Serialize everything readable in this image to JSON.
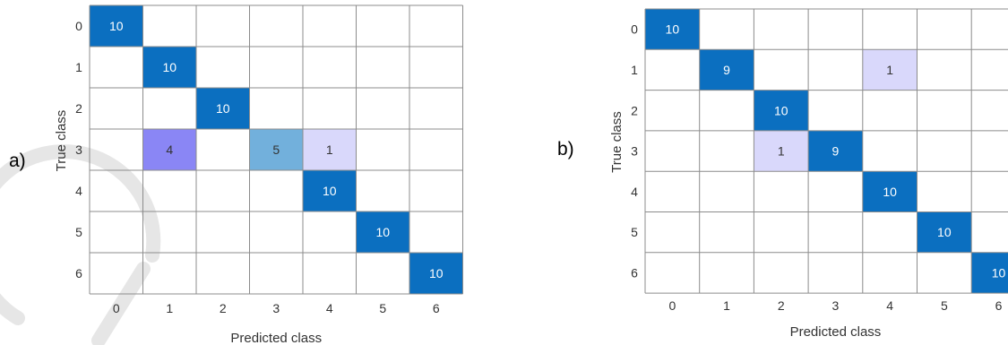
{
  "panels": {
    "a": {
      "label": "a)"
    },
    "b": {
      "label": "b)"
    }
  },
  "colors": {
    "strong": "#0b6fc0",
    "medium": "#72b0dc",
    "purple": "#8a86f5",
    "light": "#d9d8fb",
    "grid": "#8c8c8c",
    "text_light": "#ffffff",
    "text_dark": "#333333"
  },
  "chart_data": [
    {
      "type": "heatmap",
      "panel": "a)",
      "xlabel": "Predicted class",
      "ylabel": "True class",
      "x_categories": [
        "0",
        "1",
        "2",
        "3",
        "4",
        "5",
        "6"
      ],
      "y_categories": [
        "0",
        "1",
        "2",
        "3",
        "4",
        "5",
        "6"
      ],
      "cells": [
        {
          "row": "0",
          "col": "0",
          "value": 10,
          "tone": "strong"
        },
        {
          "row": "1",
          "col": "1",
          "value": 10,
          "tone": "strong"
        },
        {
          "row": "2",
          "col": "2",
          "value": 10,
          "tone": "strong"
        },
        {
          "row": "3",
          "col": "1",
          "value": 4,
          "tone": "purple"
        },
        {
          "row": "3",
          "col": "3",
          "value": 5,
          "tone": "medium"
        },
        {
          "row": "3",
          "col": "4",
          "value": 1,
          "tone": "light"
        },
        {
          "row": "4",
          "col": "4",
          "value": 10,
          "tone": "strong"
        },
        {
          "row": "5",
          "col": "5",
          "value": 10,
          "tone": "strong"
        },
        {
          "row": "6",
          "col": "6",
          "value": 10,
          "tone": "strong"
        }
      ]
    },
    {
      "type": "heatmap",
      "panel": "b)",
      "xlabel": "Predicted class",
      "ylabel": "True class",
      "x_categories": [
        "0",
        "1",
        "2",
        "3",
        "4",
        "5",
        "6"
      ],
      "y_categories": [
        "0",
        "1",
        "2",
        "3",
        "4",
        "5",
        "6"
      ],
      "cells": [
        {
          "row": "0",
          "col": "0",
          "value": 10,
          "tone": "strong"
        },
        {
          "row": "1",
          "col": "1",
          "value": 9,
          "tone": "strong"
        },
        {
          "row": "1",
          "col": "4",
          "value": 1,
          "tone": "light"
        },
        {
          "row": "2",
          "col": "2",
          "value": 10,
          "tone": "strong"
        },
        {
          "row": "3",
          "col": "2",
          "value": 1,
          "tone": "light"
        },
        {
          "row": "3",
          "col": "3",
          "value": 9,
          "tone": "strong"
        },
        {
          "row": "4",
          "col": "4",
          "value": 10,
          "tone": "strong"
        },
        {
          "row": "5",
          "col": "5",
          "value": 10,
          "tone": "strong"
        },
        {
          "row": "6",
          "col": "6",
          "value": 10,
          "tone": "strong"
        }
      ]
    }
  ]
}
